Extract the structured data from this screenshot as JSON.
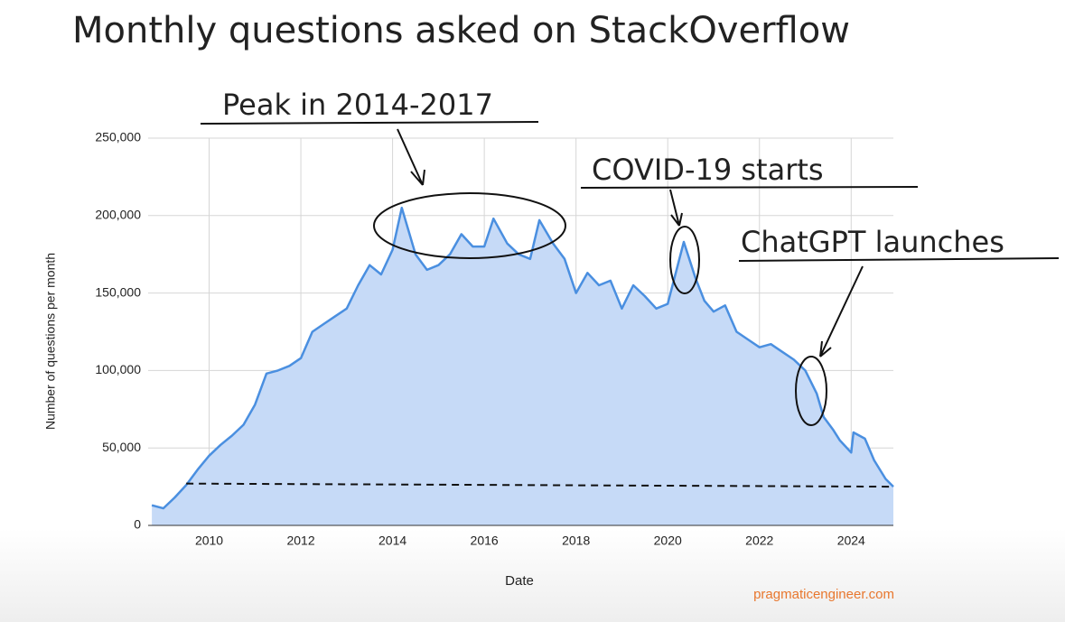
{
  "chart_data": {
    "type": "area",
    "title": "Monthly questions asked on StackOverflow",
    "x_label": "Date",
    "y_label": "Number of questions per month",
    "source": "pragmaticengineer.com",
    "annotations": [
      "Peak in 2014-2017",
      "COVID-19 starts",
      "ChatGPT launches"
    ],
    "color": "#4a8fe0",
    "fill": "#c6daf7",
    "grid": true,
    "xlim": [
      2008.67,
      2024.92
    ],
    "xticks": [
      2010,
      2012,
      2014,
      2016,
      2018,
      2020,
      2022,
      2024
    ],
    "ylim": [
      0,
      250000
    ],
    "yticks": [
      0,
      {
        "value": 50000,
        "label": "50,000"
      },
      {
        "value": 100000,
        "label": "100,000"
      },
      {
        "value": 150000,
        "label": "150,000"
      },
      {
        "value": 200000,
        "label": "200,000"
      },
      {
        "value": 250000,
        "label": "250,000"
      }
    ],
    "x": [
      2008.75,
      2009.0,
      2009.25,
      2009.5,
      2009.75,
      2010.0,
      2010.25,
      2010.5,
      2010.75,
      2011.0,
      2011.25,
      2011.5,
      2011.75,
      2012.0,
      2012.25,
      2012.5,
      2012.75,
      2013.0,
      2013.25,
      2013.5,
      2013.75,
      2014.0,
      2014.2,
      2014.5,
      2014.75,
      2015.0,
      2015.25,
      2015.5,
      2015.75,
      2016.0,
      2016.2,
      2016.5,
      2016.75,
      2017.0,
      2017.2,
      2017.5,
      2017.75,
      2018.0,
      2018.25,
      2018.5,
      2018.75,
      2019.0,
      2019.25,
      2019.5,
      2019.75,
      2020.0,
      2020.35,
      2020.6,
      2020.8,
      2021.0,
      2021.25,
      2021.5,
      2021.75,
      2022.0,
      2022.25,
      2022.5,
      2022.75,
      2023.0,
      2023.25,
      2023.4,
      2023.6,
      2023.75,
      2024.0,
      2024.05,
      2024.3,
      2024.5,
      2024.75,
      2024.92
    ],
    "values": [
      13000,
      11000,
      18000,
      26000,
      36000,
      45000,
      52000,
      58000,
      65000,
      78000,
      98000,
      100000,
      103000,
      108000,
      125000,
      130000,
      135000,
      140000,
      155000,
      168000,
      162000,
      178000,
      205000,
      175000,
      165000,
      168000,
      175000,
      188000,
      180000,
      180000,
      198000,
      182000,
      175000,
      172000,
      197000,
      182000,
      172000,
      150000,
      163000,
      155000,
      158000,
      140000,
      155000,
      148000,
      140000,
      143000,
      183000,
      160000,
      145000,
      138000,
      142000,
      125000,
      120000,
      115000,
      117000,
      112000,
      107000,
      100000,
      85000,
      70000,
      62000,
      55000,
      47000,
      60000,
      56000,
      42000,
      30000,
      25000
    ],
    "reference_line": {
      "x": [
        2009.5,
        2024.92
      ],
      "values": [
        27000,
        25000
      ]
    }
  }
}
